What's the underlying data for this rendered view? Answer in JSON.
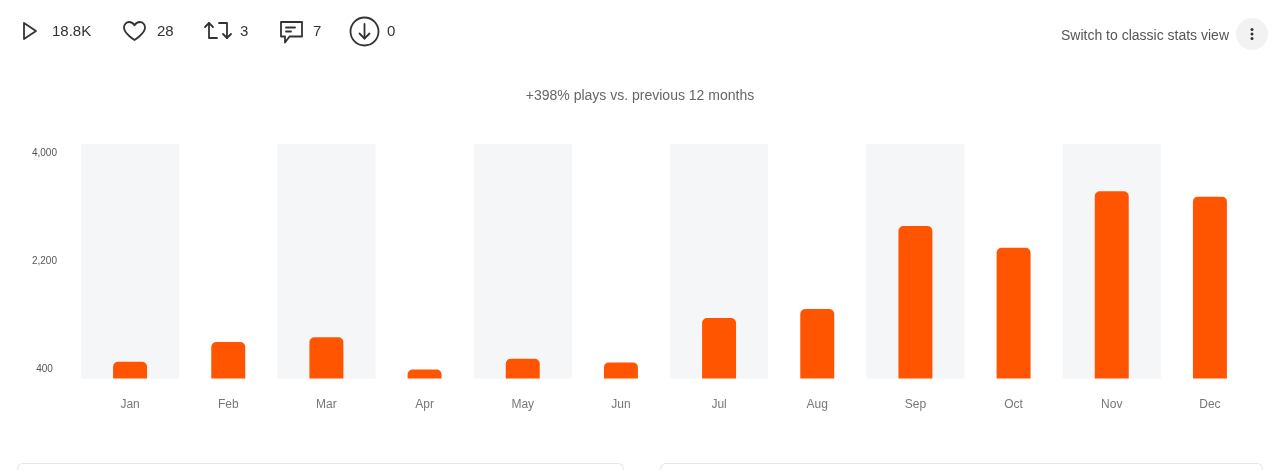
{
  "chart_data": {
    "type": "bar",
    "title": "+398% plays vs. previous 12 months",
    "categories": [
      "Jan",
      "Feb",
      "Mar",
      "Apr",
      "May",
      "Jun",
      "Jul",
      "Aug",
      "Sep",
      "Oct",
      "Nov",
      "Dec"
    ],
    "values": [
      520,
      850,
      930,
      390,
      570,
      510,
      1250,
      1400,
      2780,
      2420,
      3360,
      3270
    ],
    "color": "#ff5500",
    "ylim": [
      240,
      4150
    ],
    "yticks": [
      400,
      {
        "value": 2200,
        "label": "2,200"
      },
      {
        "value": 4000,
        "label": "4,000"
      }
    ],
    "bands": [
      {
        "axis": "x",
        "from": "Jan",
        "to": "Jan",
        "color": "#f5f6f8"
      },
      {
        "axis": "x",
        "from": "Mar",
        "to": "Mar",
        "color": "#f5f6f8"
      },
      {
        "axis": "x",
        "from": "May",
        "to": "May",
        "color": "#f5f6f8"
      },
      {
        "axis": "x",
        "from": "Jul",
        "to": "Jul",
        "color": "#f5f6f8"
      },
      {
        "axis": "x",
        "from": "Sep",
        "to": "Sep",
        "color": "#f5f6f8"
      },
      {
        "axis": "x",
        "from": "Nov",
        "to": "Nov",
        "color": "#f5f6f8"
      }
    ],
    "annotations": [
      "18.8K",
      "28",
      "3",
      "7",
      "0",
      "Switch to classic stats view"
    ]
  }
}
